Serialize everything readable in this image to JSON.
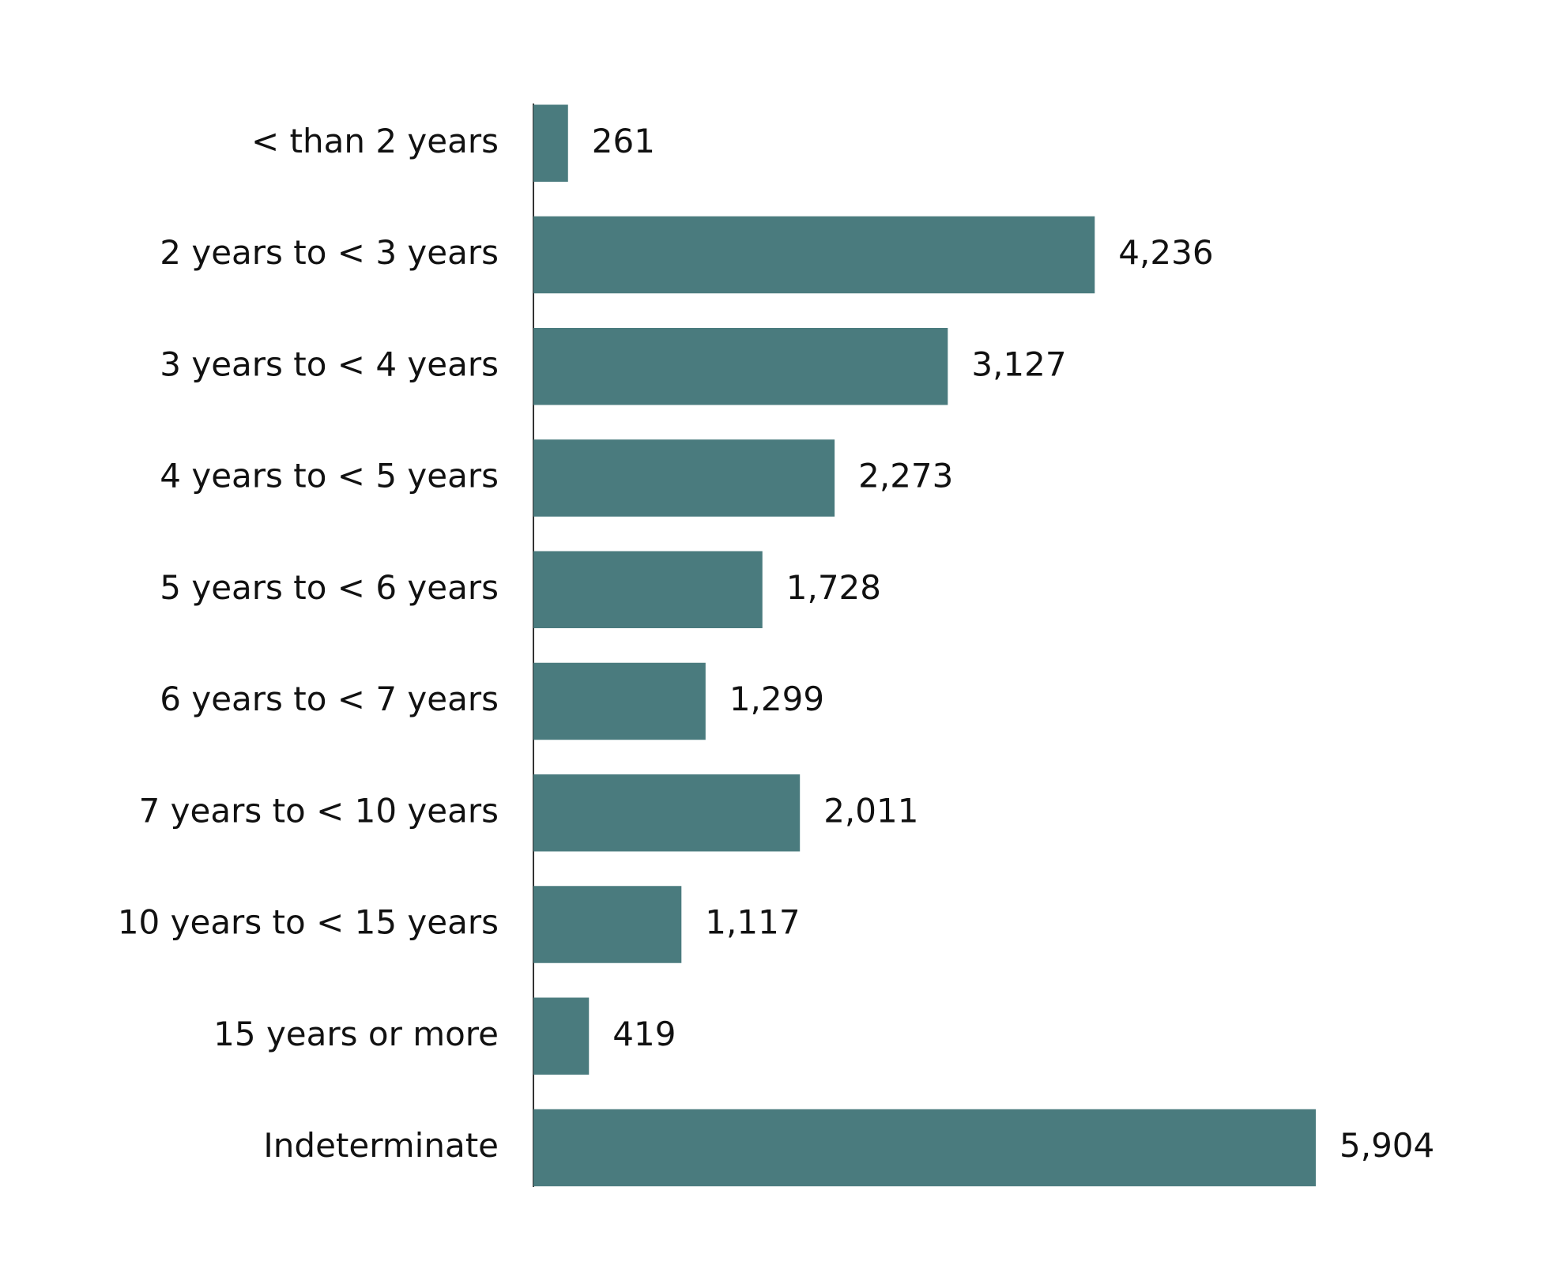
{
  "chart_data": {
    "type": "hbar",
    "categories": [
      "< than 2 years",
      "2 years to < 3 years",
      "3 years to < 4 years",
      "4 years to < 5 years",
      "5 years to < 6 years",
      "6 years to < 7 years",
      "7 years to < 10 years",
      "10 years to < 15 years",
      "15 years or more",
      "Indeterminate"
    ],
    "values": [
      261,
      4236,
      3127,
      2273,
      1728,
      1299,
      2011,
      1117,
      419,
      5904
    ],
    "value_labels": [
      "261",
      "4,236",
      "3,127",
      "2,273",
      "1,728",
      "1,299",
      "2,011",
      "1,117",
      "419",
      "5,904"
    ],
    "color": "#4a7b7e"
  }
}
